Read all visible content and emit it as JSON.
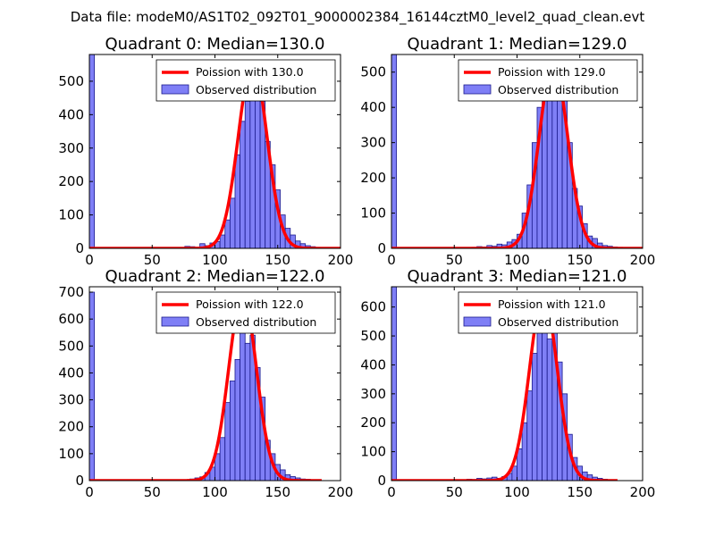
{
  "suptitle": "Data file: modeM0/AS1T02_092T01_9000002384_16144cztM0_level2_quad_clean.evt",
  "colors": {
    "hist_fill": "#7f7ff6",
    "hist_edge": "#1a1a8c",
    "curve": "#ff0000",
    "axes": "#000000"
  },
  "chart_data": [
    {
      "type": "bar",
      "title": "Quadrant 0: Median=130.0",
      "xlim": [
        0,
        200
      ],
      "ylim": [
        0,
        580
      ],
      "xticks": [
        0,
        50,
        100,
        150,
        200
      ],
      "yticks": [
        0,
        100,
        200,
        300,
        400,
        500
      ],
      "bin_width": 4,
      "legend": {
        "location": "top-right",
        "curve_label": "Poission with 130.0",
        "hist_label": "Observed distribution"
      },
      "median": 130,
      "bins": [
        {
          "x": 0,
          "y": 580
        },
        {
          "x": 72,
          "y": 3
        },
        {
          "x": 76,
          "y": 6
        },
        {
          "x": 80,
          "y": 5
        },
        {
          "x": 84,
          "y": 3
        },
        {
          "x": 88,
          "y": 14
        },
        {
          "x": 92,
          "y": 8
        },
        {
          "x": 96,
          "y": 16
        },
        {
          "x": 100,
          "y": 20
        },
        {
          "x": 104,
          "y": 40
        },
        {
          "x": 108,
          "y": 85
        },
        {
          "x": 112,
          "y": 150
        },
        {
          "x": 116,
          "y": 280
        },
        {
          "x": 120,
          "y": 380
        },
        {
          "x": 124,
          "y": 440
        },
        {
          "x": 128,
          "y": 460
        },
        {
          "x": 132,
          "y": 510
        },
        {
          "x": 136,
          "y": 440
        },
        {
          "x": 140,
          "y": 320
        },
        {
          "x": 144,
          "y": 250
        },
        {
          "x": 148,
          "y": 175
        },
        {
          "x": 152,
          "y": 100
        },
        {
          "x": 156,
          "y": 60
        },
        {
          "x": 160,
          "y": 40
        },
        {
          "x": 164,
          "y": 22
        },
        {
          "x": 168,
          "y": 14
        },
        {
          "x": 172,
          "y": 8
        },
        {
          "x": 176,
          "y": 5
        },
        {
          "x": 180,
          "y": 3
        },
        {
          "x": 184,
          "y": 2
        }
      ],
      "curve": {
        "mean": 130,
        "peak": 555,
        "sigma": 11.4,
        "x_range": [
          0,
          200
        ]
      }
    },
    {
      "type": "bar",
      "title": "Quadrant 1: Median=129.0",
      "xlim": [
        0,
        200
      ],
      "ylim": [
        0,
        550
      ],
      "xticks": [
        0,
        50,
        100,
        150,
        200
      ],
      "yticks": [
        0,
        100,
        200,
        300,
        400,
        500
      ],
      "bin_width": 4,
      "legend": {
        "location": "top-right",
        "curve_label": "Poission with 129.0",
        "hist_label": "Observed distribution"
      },
      "median": 129,
      "bins": [
        {
          "x": 0,
          "y": 550
        },
        {
          "x": 64,
          "y": 3
        },
        {
          "x": 68,
          "y": 5
        },
        {
          "x": 72,
          "y": 4
        },
        {
          "x": 76,
          "y": 8
        },
        {
          "x": 80,
          "y": 6
        },
        {
          "x": 84,
          "y": 12
        },
        {
          "x": 88,
          "y": 10
        },
        {
          "x": 92,
          "y": 18
        },
        {
          "x": 96,
          "y": 25
        },
        {
          "x": 100,
          "y": 40
        },
        {
          "x": 104,
          "y": 100
        },
        {
          "x": 108,
          "y": 180
        },
        {
          "x": 112,
          "y": 300
        },
        {
          "x": 116,
          "y": 400
        },
        {
          "x": 120,
          "y": 490
        },
        {
          "x": 124,
          "y": 505
        },
        {
          "x": 128,
          "y": 470
        },
        {
          "x": 132,
          "y": 510
        },
        {
          "x": 136,
          "y": 420
        },
        {
          "x": 140,
          "y": 300
        },
        {
          "x": 144,
          "y": 170
        },
        {
          "x": 148,
          "y": 120
        },
        {
          "x": 152,
          "y": 70
        },
        {
          "x": 156,
          "y": 35
        },
        {
          "x": 160,
          "y": 28
        },
        {
          "x": 164,
          "y": 15
        },
        {
          "x": 168,
          "y": 8
        },
        {
          "x": 172,
          "y": 6
        },
        {
          "x": 176,
          "y": 4
        },
        {
          "x": 180,
          "y": 3
        },
        {
          "x": 184,
          "y": 2
        }
      ],
      "curve": {
        "mean": 129,
        "peak": 525,
        "sigma": 11.3,
        "x_range": [
          0,
          200
        ]
      }
    },
    {
      "type": "bar",
      "title": "Quadrant 2: Median=122.0",
      "xlim": [
        0,
        200
      ],
      "ylim": [
        0,
        720
      ],
      "xticks": [
        0,
        50,
        100,
        150,
        200
      ],
      "yticks": [
        0,
        100,
        200,
        300,
        400,
        500,
        600,
        700
      ],
      "bin_width": 4,
      "legend": {
        "location": "top-right",
        "curve_label": "Poission with 122.0",
        "hist_label": "Observed distribution"
      },
      "median": 122,
      "bins": [
        {
          "x": 0,
          "y": 700
        },
        {
          "x": 76,
          "y": 3
        },
        {
          "x": 80,
          "y": 6
        },
        {
          "x": 84,
          "y": 10
        },
        {
          "x": 88,
          "y": 14
        },
        {
          "x": 92,
          "y": 30
        },
        {
          "x": 96,
          "y": 50
        },
        {
          "x": 100,
          "y": 100
        },
        {
          "x": 104,
          "y": 160
        },
        {
          "x": 108,
          "y": 290
        },
        {
          "x": 112,
          "y": 370
        },
        {
          "x": 116,
          "y": 450
        },
        {
          "x": 120,
          "y": 680
        },
        {
          "x": 124,
          "y": 510
        },
        {
          "x": 128,
          "y": 540
        },
        {
          "x": 132,
          "y": 420
        },
        {
          "x": 136,
          "y": 310
        },
        {
          "x": 140,
          "y": 150
        },
        {
          "x": 144,
          "y": 100
        },
        {
          "x": 148,
          "y": 60
        },
        {
          "x": 152,
          "y": 40
        },
        {
          "x": 156,
          "y": 22
        },
        {
          "x": 160,
          "y": 15
        },
        {
          "x": 164,
          "y": 10
        },
        {
          "x": 168,
          "y": 6
        },
        {
          "x": 172,
          "y": 5
        },
        {
          "x": 176,
          "y": 3
        }
      ],
      "curve": {
        "mean": 122,
        "peak": 690,
        "sigma": 11.0,
        "x_range": [
          0,
          185
        ]
      }
    },
    {
      "type": "bar",
      "title": "Quadrant 3: Median=121.0",
      "xlim": [
        0,
        200
      ],
      "ylim": [
        0,
        670
      ],
      "xticks": [
        0,
        50,
        100,
        150,
        200
      ],
      "yticks": [
        0,
        100,
        200,
        300,
        400,
        500,
        600
      ],
      "bin_width": 4,
      "legend": {
        "location": "top-right",
        "curve_label": "Poission with 121.0",
        "hist_label": "Observed distribution"
      },
      "median": 121,
      "bins": [
        {
          "x": 0,
          "y": 670
        },
        {
          "x": 60,
          "y": 5
        },
        {
          "x": 64,
          "y": 4
        },
        {
          "x": 68,
          "y": 8
        },
        {
          "x": 72,
          "y": 6
        },
        {
          "x": 76,
          "y": 9
        },
        {
          "x": 80,
          "y": 12
        },
        {
          "x": 84,
          "y": 8
        },
        {
          "x": 88,
          "y": 14
        },
        {
          "x": 92,
          "y": 25
        },
        {
          "x": 96,
          "y": 50
        },
        {
          "x": 100,
          "y": 110
        },
        {
          "x": 104,
          "y": 200
        },
        {
          "x": 108,
          "y": 310
        },
        {
          "x": 112,
          "y": 440
        },
        {
          "x": 116,
          "y": 530
        },
        {
          "x": 120,
          "y": 650
        },
        {
          "x": 124,
          "y": 490
        },
        {
          "x": 128,
          "y": 560
        },
        {
          "x": 132,
          "y": 410
        },
        {
          "x": 136,
          "y": 300
        },
        {
          "x": 140,
          "y": 160
        },
        {
          "x": 144,
          "y": 80
        },
        {
          "x": 148,
          "y": 50
        },
        {
          "x": 152,
          "y": 30
        },
        {
          "x": 156,
          "y": 20
        },
        {
          "x": 160,
          "y": 12
        },
        {
          "x": 164,
          "y": 8
        },
        {
          "x": 168,
          "y": 5
        },
        {
          "x": 172,
          "y": 3
        }
      ],
      "curve": {
        "mean": 121,
        "peak": 640,
        "sigma": 11.0,
        "x_range": [
          0,
          180
        ]
      }
    }
  ]
}
